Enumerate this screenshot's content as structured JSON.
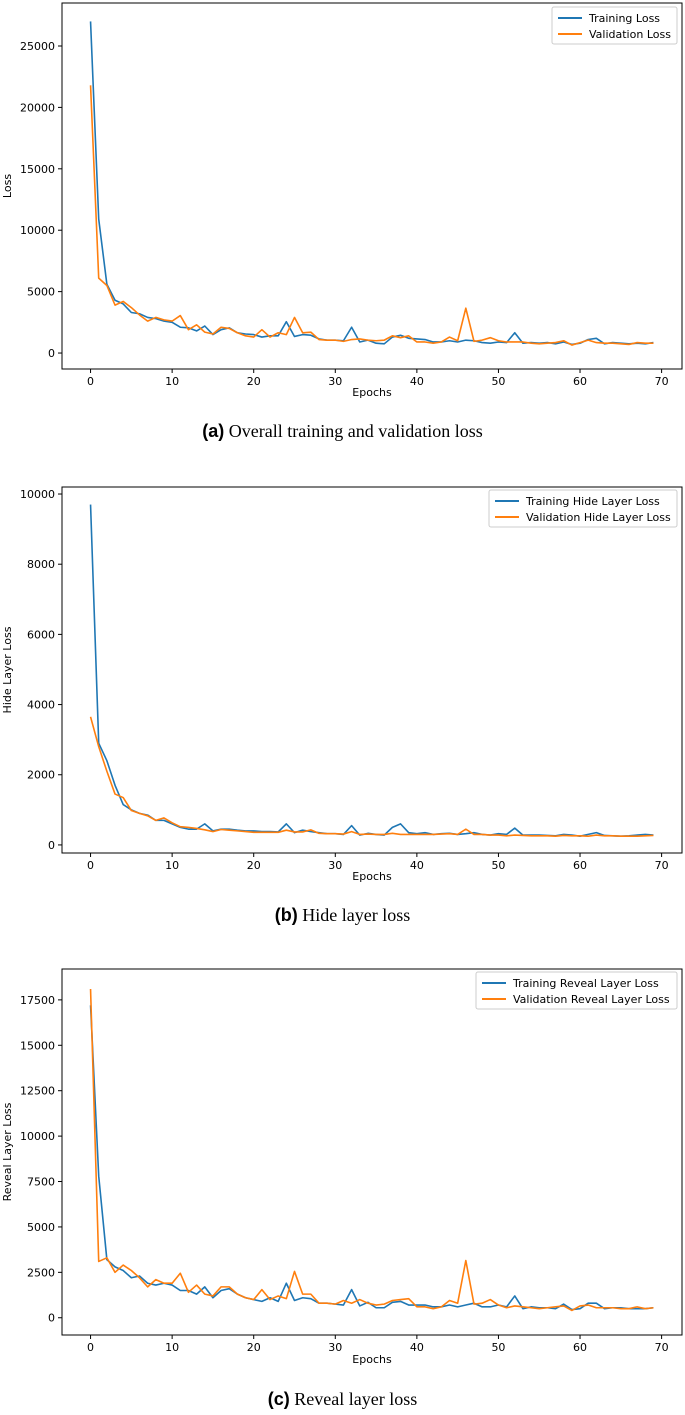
{
  "colors": {
    "training": "#1f77b4",
    "validation": "#ff7f0e"
  },
  "chart_data": [
    {
      "type": "line",
      "id": "a",
      "caption_letter": "(a)",
      "caption_text": " Overall training and validation loss",
      "xlabel": "Epochs",
      "ylabel": "Loss",
      "xlim": [
        -3.5,
        72.5
      ],
      "ylim": [
        -1300,
        28500
      ],
      "xticks": [
        0,
        10,
        20,
        30,
        40,
        50,
        60,
        70
      ],
      "yticks": [
        0,
        5000,
        10000,
        15000,
        20000,
        25000
      ],
      "legend_position": "top-right",
      "series": [
        {
          "name": "Training Loss",
          "color": "#1f77b4",
          "values": [
            27000,
            10900,
            5600,
            4300,
            4000,
            3300,
            3200,
            2900,
            2800,
            2600,
            2500,
            2100,
            2050,
            1800,
            2200,
            1500,
            1900,
            2050,
            1650,
            1550,
            1500,
            1300,
            1400,
            1400,
            2550,
            1350,
            1500,
            1450,
            1150,
            1050,
            1050,
            1000,
            2100,
            900,
            1050,
            800,
            750,
            1300,
            1450,
            1200,
            1150,
            1100,
            900,
            900,
            1000,
            900,
            1050,
            1000,
            850,
            800,
            900,
            850,
            1650,
            800,
            850,
            800,
            850,
            750,
            900,
            700,
            800,
            1100,
            1200,
            750,
            850,
            800,
            750,
            800,
            750,
            850
          ]
        },
        {
          "name": "Validation Loss",
          "color": "#ff7f0e",
          "values": [
            21800,
            6100,
            5500,
            3900,
            4200,
            3700,
            3100,
            2600,
            2900,
            2700,
            2600,
            3050,
            1900,
            2300,
            1700,
            1550,
            2100,
            2000,
            1650,
            1400,
            1300,
            1900,
            1300,
            1650,
            1500,
            2900,
            1650,
            1700,
            1100,
            1050,
            1050,
            950,
            1100,
            1150,
            1050,
            1000,
            1050,
            1400,
            1250,
            1400,
            900,
            900,
            800,
            900,
            1300,
            1000,
            3650,
            950,
            1050,
            1250,
            1000,
            900,
            900,
            900,
            800,
            750,
            800,
            850,
            1000,
            650,
            850,
            1050,
            850,
            800,
            800,
            750,
            700,
            850,
            800,
            800
          ]
        }
      ]
    },
    {
      "type": "line",
      "id": "b",
      "caption_letter": "(b)",
      "caption_text": " Hide layer loss",
      "xlabel": "Epochs",
      "ylabel": "Hide Layer Loss",
      "xlim": [
        -3.5,
        72.5
      ],
      "ylim": [
        -230,
        10200
      ],
      "xticks": [
        0,
        10,
        20,
        30,
        40,
        50,
        60,
        70
      ],
      "yticks": [
        0,
        2000,
        4000,
        6000,
        8000,
        10000
      ],
      "legend_position": "top-right",
      "series": [
        {
          "name": "Training Hide Layer Loss",
          "color": "#1f77b4",
          "values": [
            9700,
            2900,
            2400,
            1700,
            1150,
            1000,
            900,
            850,
            700,
            700,
            600,
            500,
            450,
            450,
            600,
            400,
            450,
            450,
            420,
            400,
            400,
            380,
            380,
            370,
            600,
            350,
            420,
            380,
            350,
            320,
            320,
            300,
            550,
            280,
            330,
            300,
            280,
            500,
            600,
            350,
            320,
            350,
            300,
            320,
            330,
            300,
            320,
            350,
            300,
            280,
            320,
            300,
            480,
            280,
            280,
            280,
            270,
            260,
            300,
            280,
            250,
            300,
            350,
            270,
            260,
            250,
            260,
            280,
            300,
            280
          ]
        },
        {
          "name": "Validation Hide Layer Loss",
          "color": "#ff7f0e",
          "values": [
            3650,
            2800,
            2100,
            1450,
            1350,
            980,
            900,
            830,
            700,
            770,
            630,
            520,
            500,
            470,
            430,
            380,
            440,
            420,
            400,
            380,
            360,
            360,
            360,
            360,
            420,
            370,
            370,
            430,
            330,
            320,
            320,
            310,
            380,
            300,
            310,
            300,
            300,
            330,
            300,
            300,
            300,
            300,
            300,
            310,
            320,
            300,
            450,
            300,
            300,
            280,
            280,
            260,
            280,
            270,
            260,
            260,
            260,
            250,
            270,
            260,
            260,
            250,
            280,
            260,
            260,
            250,
            250,
            250,
            260,
            270
          ]
        }
      ]
    },
    {
      "type": "line",
      "id": "c",
      "caption_letter": "(c)",
      "caption_text": " Reveal layer loss",
      "xlabel": "Epochs",
      "ylabel": "Reveal Layer Loss",
      "xlim": [
        -3.5,
        72.5
      ],
      "ylim": [
        -950,
        19200
      ],
      "xticks": [
        0,
        10,
        20,
        30,
        40,
        50,
        60,
        70
      ],
      "yticks": [
        0,
        2500,
        5000,
        7500,
        10000,
        12500,
        15000,
        17500
      ],
      "legend_position": "top-right",
      "series": [
        {
          "name": "Training Reveal Layer Loss",
          "color": "#1f77b4",
          "values": [
            17200,
            7800,
            3200,
            2800,
            2600,
            2200,
            2300,
            1900,
            1800,
            1900,
            1800,
            1500,
            1500,
            1300,
            1700,
            1100,
            1500,
            1600,
            1300,
            1100,
            1000,
            900,
            1100,
            900,
            1900,
            950,
            1100,
            1050,
            800,
            800,
            750,
            700,
            1550,
            650,
            850,
            550,
            550,
            850,
            900,
            700,
            700,
            700,
            600,
            600,
            700,
            600,
            700,
            800,
            600,
            600,
            700,
            600,
            1200,
            500,
            600,
            550,
            550,
            500,
            750,
            450,
            500,
            800,
            800,
            500,
            550,
            550,
            500,
            500,
            500,
            550
          ]
        },
        {
          "name": "Validation Reveal Layer Loss",
          "color": "#ff7f0e",
          "values": [
            18100,
            3100,
            3300,
            2500,
            2900,
            2600,
            2200,
            1700,
            2100,
            1900,
            1900,
            2450,
            1400,
            1800,
            1300,
            1200,
            1700,
            1700,
            1300,
            1100,
            1000,
            1550,
            1000,
            1200,
            1050,
            2550,
            1300,
            1300,
            800,
            800,
            750,
            950,
            800,
            1000,
            800,
            700,
            750,
            950,
            1000,
            1050,
            600,
            600,
            500,
            600,
            950,
            800,
            3150,
            750,
            800,
            1000,
            700,
            550,
            650,
            600,
            550,
            500,
            550,
            600,
            650,
            400,
            650,
            700,
            550,
            550,
            550,
            500,
            500,
            600,
            500,
            550
          ]
        }
      ]
    }
  ]
}
